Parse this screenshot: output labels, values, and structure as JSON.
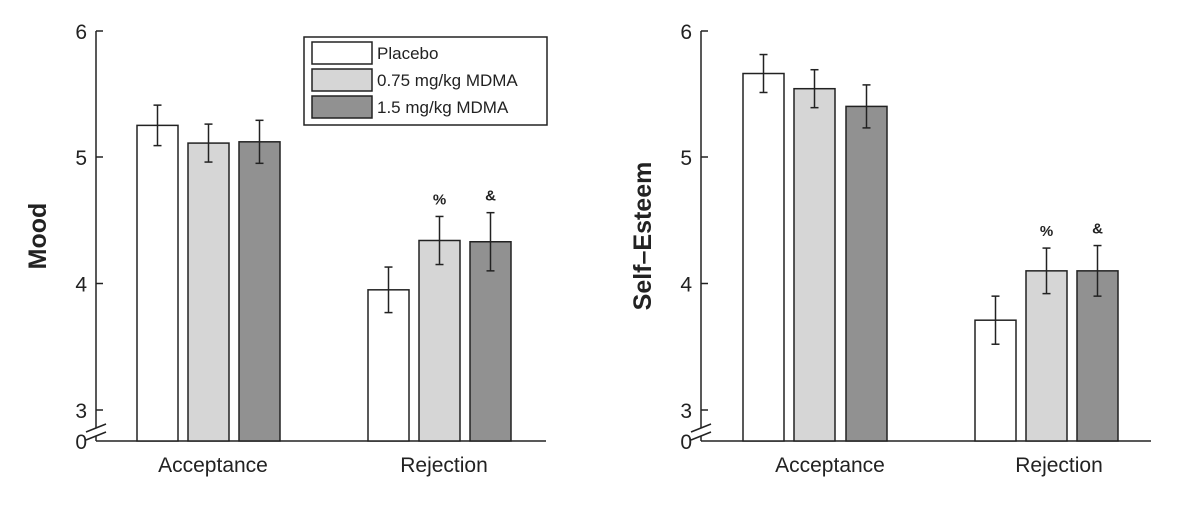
{
  "legend": {
    "entries": [
      {
        "label": "Placebo",
        "color": "#ffffff"
      },
      {
        "label": "0.75 mg/kg MDMA",
        "color": "#d6d6d6"
      },
      {
        "label": "1.5 mg/kg MDMA",
        "color": "#919191"
      }
    ],
    "placement": "top-right of left panel"
  },
  "chart_data": [
    {
      "type": "bar",
      "ylabel": "Mood",
      "xlabel": "",
      "categories": [
        "Acceptance",
        "Rejection"
      ],
      "y_ticks": [
        "0",
        "3",
        "4",
        "5",
        "6"
      ],
      "y_axis_break": true,
      "ylim": [
        3,
        6
      ],
      "grid": false,
      "series": [
        {
          "name": "Placebo",
          "color": "#ffffff",
          "values": [
            5.25,
            3.95
          ],
          "errors": [
            0.16,
            0.18
          ]
        },
        {
          "name": "0.75 mg/kg MDMA",
          "color": "#d6d6d6",
          "values": [
            5.11,
            4.34
          ],
          "errors": [
            0.15,
            0.19
          ]
        },
        {
          "name": "1.5 mg/kg MDMA",
          "color": "#919191",
          "values": [
            5.12,
            4.33
          ],
          "errors": [
            0.17,
            0.23
          ]
        }
      ],
      "annotations": [
        {
          "category": "Rejection",
          "series": "0.75 mg/kg MDMA",
          "text": "%"
        },
        {
          "category": "Rejection",
          "series": "1.5 mg/kg MDMA",
          "text": "&"
        }
      ]
    },
    {
      "type": "bar",
      "ylabel": "Self–Esteem",
      "xlabel": "",
      "categories": [
        "Acceptance",
        "Rejection"
      ],
      "y_ticks": [
        "0",
        "3",
        "4",
        "5",
        "6"
      ],
      "y_axis_break": true,
      "ylim": [
        3,
        6
      ],
      "grid": false,
      "series": [
        {
          "name": "Placebo",
          "color": "#ffffff",
          "values": [
            5.66,
            3.71
          ],
          "errors": [
            0.15,
            0.19
          ]
        },
        {
          "name": "0.75 mg/kg MDMA",
          "color": "#d6d6d6",
          "values": [
            5.54,
            4.1
          ],
          "errors": [
            0.15,
            0.18
          ]
        },
        {
          "name": "1.5 mg/kg MDMA",
          "color": "#919191",
          "values": [
            5.4,
            4.1
          ],
          "errors": [
            0.17,
            0.2
          ]
        }
      ],
      "annotations": [
        {
          "category": "Rejection",
          "series": "0.75 mg/kg MDMA",
          "text": "%"
        },
        {
          "category": "Rejection",
          "series": "1.5 mg/kg MDMA",
          "text": "&"
        }
      ]
    }
  ]
}
